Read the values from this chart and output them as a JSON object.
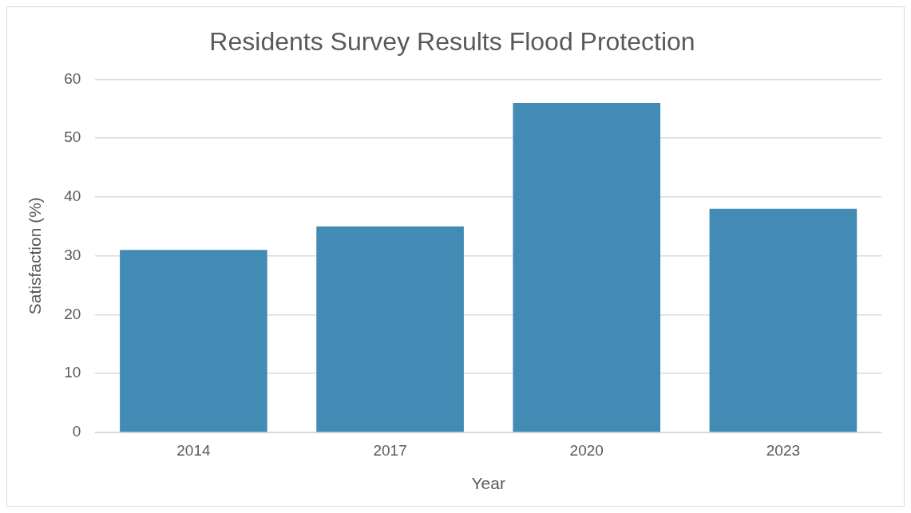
{
  "chart_data": {
    "type": "bar",
    "title": "Residents Survey Results Flood Protection",
    "xlabel": "Year",
    "ylabel": "Satisfaction (%)",
    "categories": [
      "2014",
      "2017",
      "2020",
      "2023"
    ],
    "values": [
      31,
      35,
      56,
      38
    ],
    "color": "#428bb5",
    "ylim": [
      0,
      60
    ],
    "yticks": [
      0,
      10,
      20,
      30,
      40,
      50,
      60
    ],
    "grid": "y"
  }
}
